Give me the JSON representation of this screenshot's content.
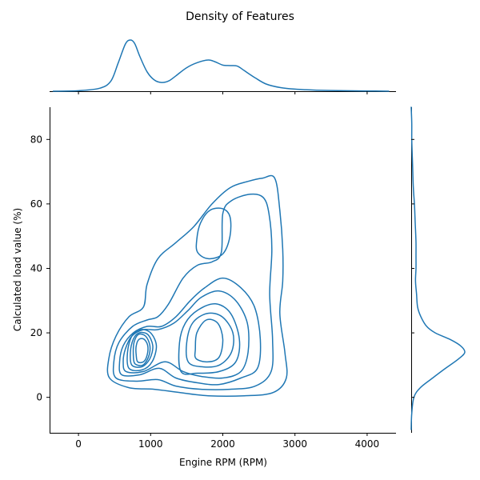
{
  "chart_data": {
    "type": "jointplot-kde",
    "title": "Density of Features",
    "xlabel": "Engine RPM (RPM)",
    "ylabel": "Calculated load value (%)",
    "xlim": [
      -400,
      4400
    ],
    "ylim": [
      -11,
      90
    ],
    "x_ticks": [
      0,
      1000,
      2000,
      3000,
      4000
    ],
    "y_ticks": [
      0,
      20,
      40,
      60,
      80
    ],
    "color": "#1f77b4",
    "grid": false,
    "marginal_x": {
      "x": [
        -350,
        0,
        300,
        450,
        550,
        650,
        720,
        780,
        850,
        950,
        1050,
        1150,
        1250,
        1350,
        1500,
        1650,
        1800,
        1900,
        2000,
        2100,
        2200,
        2300,
        2450,
        2600,
        2800,
        3000,
        3300,
        3700,
        4000,
        4300
      ],
      "density": [
        0.0,
        0.01,
        0.06,
        0.2,
        0.55,
        0.92,
        1.0,
        0.93,
        0.68,
        0.38,
        0.22,
        0.17,
        0.2,
        0.3,
        0.46,
        0.56,
        0.61,
        0.57,
        0.51,
        0.5,
        0.49,
        0.4,
        0.26,
        0.14,
        0.07,
        0.04,
        0.02,
        0.01,
        0.005,
        0.0
      ]
    },
    "marginal_y": {
      "y": [
        -10,
        -5,
        0,
        3,
        6,
        9,
        12,
        14,
        16,
        18,
        20,
        22,
        25,
        28,
        32,
        36,
        40,
        44,
        48,
        52,
        56,
        60,
        65,
        70,
        75,
        80,
        85,
        90
      ],
      "density": [
        0.0,
        0.01,
        0.05,
        0.17,
        0.4,
        0.64,
        0.89,
        1.0,
        0.92,
        0.72,
        0.45,
        0.29,
        0.18,
        0.12,
        0.1,
        0.08,
        0.09,
        0.09,
        0.09,
        0.08,
        0.07,
        0.06,
        0.04,
        0.03,
        0.02,
        0.01,
        0.01,
        0.0
      ]
    },
    "contours": [
      [
        [
          430,
          6
        ],
        [
          700,
          3
        ],
        [
          1050,
          2.5
        ],
        [
          1400,
          1.5
        ],
        [
          1800,
          0.5
        ],
        [
          2300,
          0.5
        ],
        [
          2700,
          1.5
        ],
        [
          2880,
          6
        ],
        [
          2860,
          14
        ],
        [
          2790,
          26
        ],
        [
          2830,
          36
        ],
        [
          2830,
          46
        ],
        [
          2790,
          58
        ],
        [
          2720,
          68
        ],
        [
          2550,
          68
        ],
        [
          2350,
          67
        ],
        [
          2100,
          65
        ],
        [
          1850,
          60
        ],
        [
          1600,
          53
        ],
        [
          1350,
          48
        ],
        [
          1100,
          43
        ],
        [
          950,
          35
        ],
        [
          900,
          28
        ],
        [
          700,
          25
        ],
        [
          520,
          19
        ],
        [
          420,
          12
        ],
        [
          430,
          6
        ]
      ],
      [
        [
          520,
          6
        ],
        [
          800,
          5
        ],
        [
          1100,
          5.5
        ],
        [
          1350,
          3.5
        ],
        [
          1700,
          2.5
        ],
        [
          2100,
          2.5
        ],
        [
          2450,
          3.5
        ],
        [
          2670,
          8
        ],
        [
          2690,
          18
        ],
        [
          2650,
          32
        ],
        [
          2680,
          46
        ],
        [
          2640,
          57
        ],
        [
          2560,
          62
        ],
        [
          2380,
          63
        ],
        [
          2120,
          61
        ],
        [
          2000,
          57
        ],
        [
          1980,
          45
        ],
        [
          1850,
          42
        ],
        [
          1650,
          41
        ],
        [
          1450,
          37
        ],
        [
          1250,
          29
        ],
        [
          1100,
          25
        ],
        [
          950,
          24
        ],
        [
          750,
          22
        ],
        [
          560,
          17
        ],
        [
          490,
          11
        ],
        [
          520,
          6
        ]
      ],
      [
        [
          600,
          7
        ],
        [
          850,
          7
        ],
        [
          1120,
          9
        ],
        [
          1350,
          6
        ],
        [
          1650,
          4.5
        ],
        [
          1950,
          4
        ],
        [
          2250,
          6
        ],
        [
          2480,
          9
        ],
        [
          2520,
          18
        ],
        [
          2440,
          28
        ],
        [
          2250,
          34
        ],
        [
          2000,
          37
        ],
        [
          1750,
          34
        ],
        [
          1550,
          30
        ],
        [
          1350,
          25
        ],
        [
          1150,
          22
        ],
        [
          950,
          22
        ],
        [
          760,
          20
        ],
        [
          620,
          16
        ],
        [
          570,
          11
        ],
        [
          600,
          7
        ]
      ],
      [
        [
          660,
          8
        ],
        [
          900,
          8
        ],
        [
          1200,
          11
        ],
        [
          1450,
          8
        ],
        [
          1700,
          6.5
        ],
        [
          2000,
          6
        ],
        [
          2250,
          8
        ],
        [
          2350,
          14
        ],
        [
          2340,
          23
        ],
        [
          2180,
          30
        ],
        [
          1950,
          33
        ],
        [
          1700,
          31
        ],
        [
          1520,
          27
        ],
        [
          1320,
          23
        ],
        [
          1100,
          21
        ],
        [
          900,
          21
        ],
        [
          740,
          19
        ],
        [
          650,
          15
        ],
        [
          620,
          11
        ],
        [
          660,
          8
        ]
      ],
      [
        [
          1420,
          8
        ],
        [
          1650,
          7.5
        ],
        [
          1950,
          8
        ],
        [
          2180,
          11
        ],
        [
          2230,
          18
        ],
        [
          2110,
          26
        ],
        [
          1900,
          29
        ],
        [
          1650,
          27
        ],
        [
          1480,
          23
        ],
        [
          1400,
          17
        ],
        [
          1420,
          8
        ]
      ],
      [
        [
          1520,
          11
        ],
        [
          1700,
          9.5
        ],
        [
          1950,
          10
        ],
        [
          2120,
          14
        ],
        [
          2140,
          20
        ],
        [
          1990,
          25
        ],
        [
          1780,
          26
        ],
        [
          1580,
          23
        ],
        [
          1500,
          17
        ],
        [
          1520,
          11
        ]
      ],
      [
        [
          1630,
          12
        ],
        [
          1800,
          11
        ],
        [
          1950,
          12.5
        ],
        [
          2000,
          18
        ],
        [
          1930,
          23
        ],
        [
          1770,
          24
        ],
        [
          1640,
          20
        ],
        [
          1620,
          15
        ],
        [
          1630,
          12
        ]
      ],
      [
        [
          700,
          9
        ],
        [
          880,
          8.5
        ],
        [
          1020,
          11
        ],
        [
          1080,
          16
        ],
        [
          1000,
          20
        ],
        [
          860,
          21
        ],
        [
          740,
          19
        ],
        [
          680,
          14
        ],
        [
          700,
          9
        ]
      ],
      [
        [
          740,
          10
        ],
        [
          880,
          9.5
        ],
        [
          990,
          12
        ],
        [
          1030,
          16
        ],
        [
          960,
          19.5
        ],
        [
          840,
          20
        ],
        [
          760,
          18
        ],
        [
          720,
          14
        ],
        [
          740,
          10
        ]
      ],
      [
        [
          780,
          10.5
        ],
        [
          890,
          10
        ],
        [
          970,
          12.5
        ],
        [
          990,
          16
        ],
        [
          930,
          19
        ],
        [
          830,
          19.5
        ],
        [
          770,
          17
        ],
        [
          760,
          13.5
        ],
        [
          780,
          10.5
        ]
      ],
      [
        [
          820,
          11
        ],
        [
          900,
          11
        ],
        [
          950,
          13
        ],
        [
          960,
          16
        ],
        [
          910,
          18
        ],
        [
          840,
          18
        ],
        [
          800,
          16
        ],
        [
          800,
          13
        ],
        [
          820,
          11
        ]
      ],
      [
        [
          1650,
          45
        ],
        [
          1800,
          43
        ],
        [
          2000,
          44.5
        ],
        [
          2100,
          50
        ],
        [
          2100,
          56
        ],
        [
          2000,
          58.5
        ],
        [
          1820,
          58
        ],
        [
          1690,
          54
        ],
        [
          1640,
          49
        ],
        [
          1650,
          45
        ]
      ]
    ]
  }
}
